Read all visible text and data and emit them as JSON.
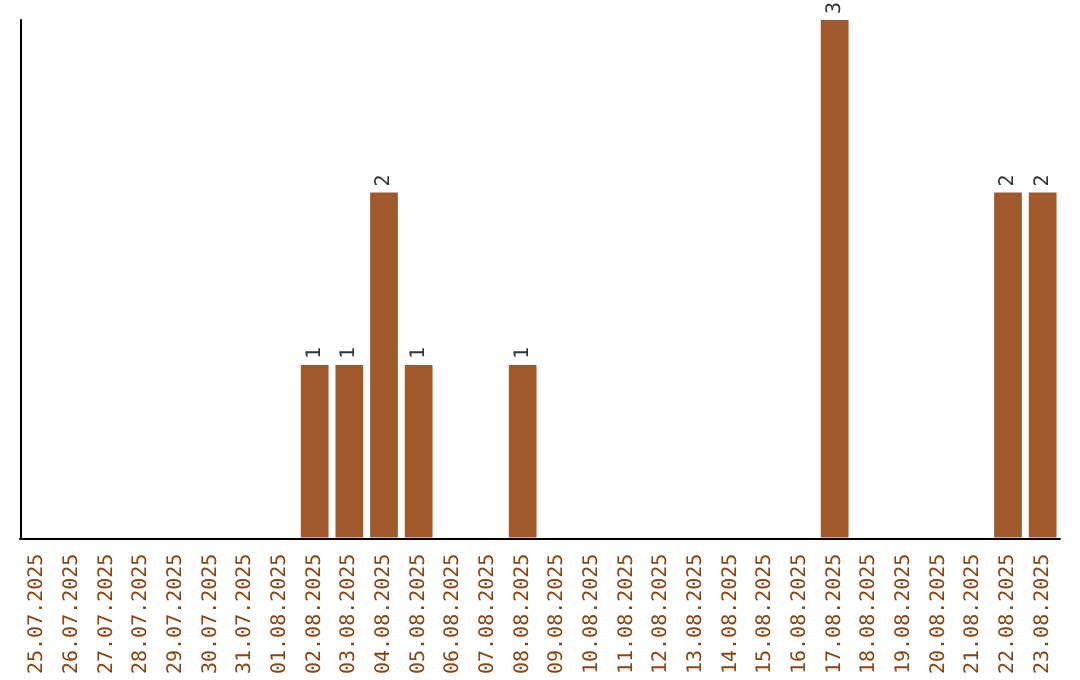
{
  "chart_data": {
    "type": "bar",
    "categories": [
      "25.07.2025",
      "26.07.2025",
      "27.07.2025",
      "28.07.2025",
      "29.07.2025",
      "30.07.2025",
      "31.07.2025",
      "01.08.2025",
      "02.08.2025",
      "03.08.2025",
      "04.08.2025",
      "05.08.2025",
      "06.08.2025",
      "07.08.2025",
      "08.08.2025",
      "09.08.2025",
      "10.08.2025",
      "11.08.2025",
      "12.08.2025",
      "13.08.2025",
      "14.08.2025",
      "15.08.2025",
      "16.08.2025",
      "17.08.2025",
      "18.08.2025",
      "19.08.2025",
      "20.08.2025",
      "21.08.2025",
      "22.08.2025",
      "23.08.2025"
    ],
    "values": [
      0,
      0,
      0,
      0,
      0,
      0,
      0,
      0,
      1,
      1,
      2,
      1,
      0,
      0,
      1,
      0,
      0,
      0,
      0,
      0,
      0,
      0,
      0,
      3,
      0,
      0,
      0,
      0,
      2,
      2
    ],
    "value_labels": [
      null,
      null,
      null,
      null,
      null,
      null,
      null,
      null,
      "1",
      "1",
      "2",
      "1",
      null,
      null,
      "1",
      null,
      null,
      null,
      null,
      null,
      null,
      null,
      null,
      "3",
      null,
      null,
      null,
      null,
      "2",
      "2"
    ],
    "color": "#a0582c",
    "tick_labels": "x"
  }
}
